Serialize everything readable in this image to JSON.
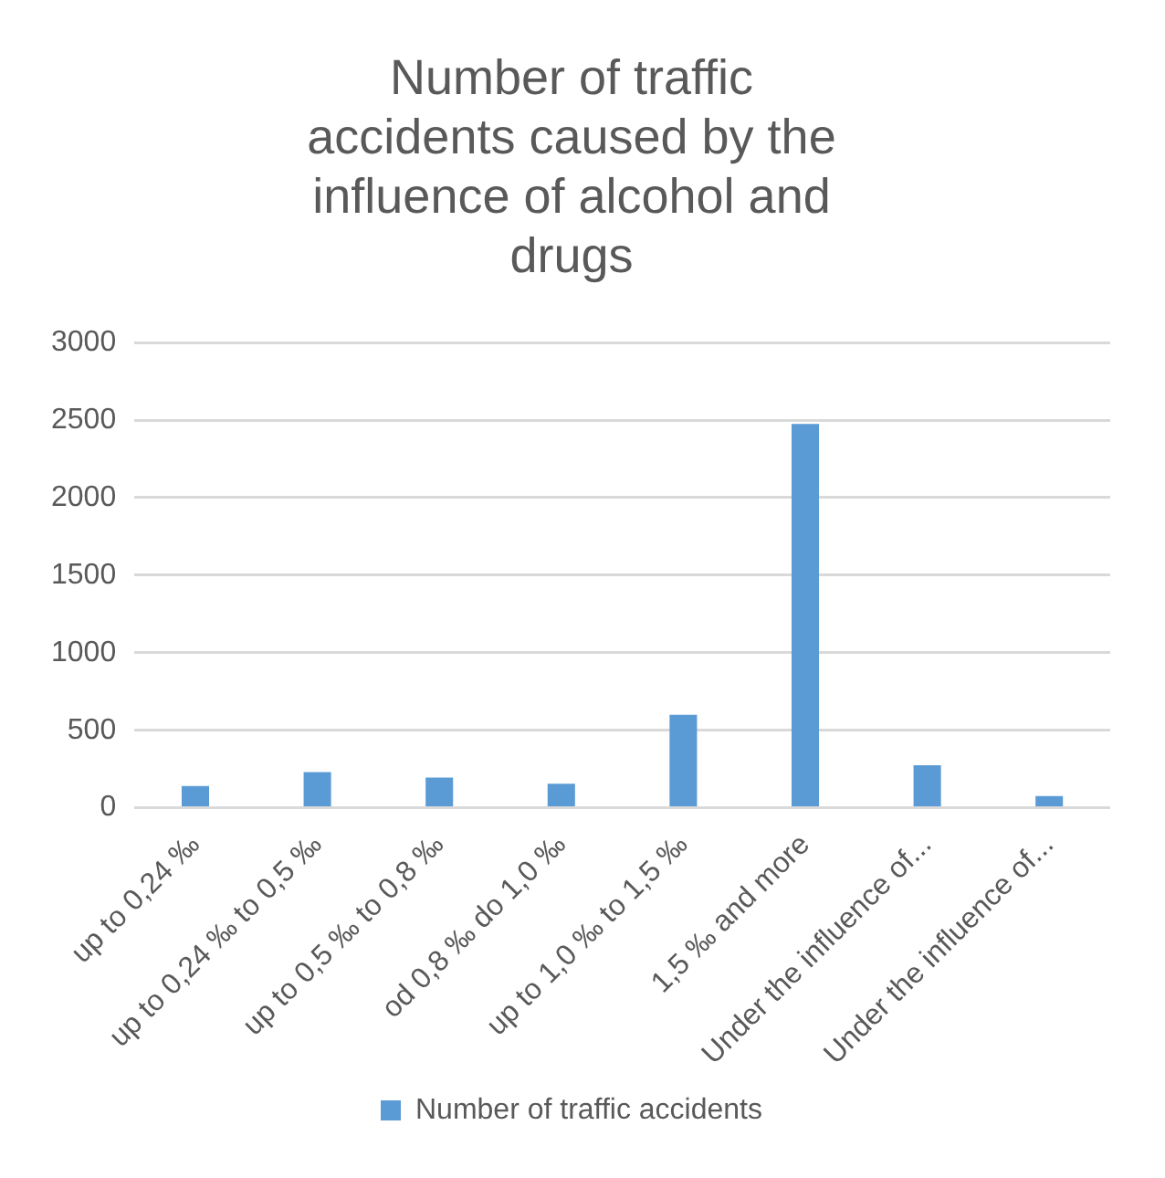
{
  "chart_data": {
    "type": "bar",
    "title": "Number of traffic accidents caused by the influence of alcohol and drugs",
    "categories": [
      "up to 0,24 ‰",
      "up to 0,24 ‰ to 0,5 ‰",
      "up to 0,5 ‰ to 0,8 ‰",
      "od 0,8 ‰ do 1,0 ‰",
      "up to 1,0 ‰ to 1,5 ‰",
      "1,5 ‰ and more",
      "Under the influence of...",
      "Under the influence of..."
    ],
    "series": [
      {
        "name": "Number of traffic accidents",
        "color": "#5b9bd5",
        "values": [
          140,
          230,
          195,
          155,
          600,
          2475,
          275,
          75
        ]
      }
    ],
    "ylim": [
      0,
      3000
    ],
    "yticks": [
      0,
      500,
      1000,
      1500,
      2000,
      2500,
      3000
    ],
    "grid": "y",
    "legend": "bottom"
  }
}
